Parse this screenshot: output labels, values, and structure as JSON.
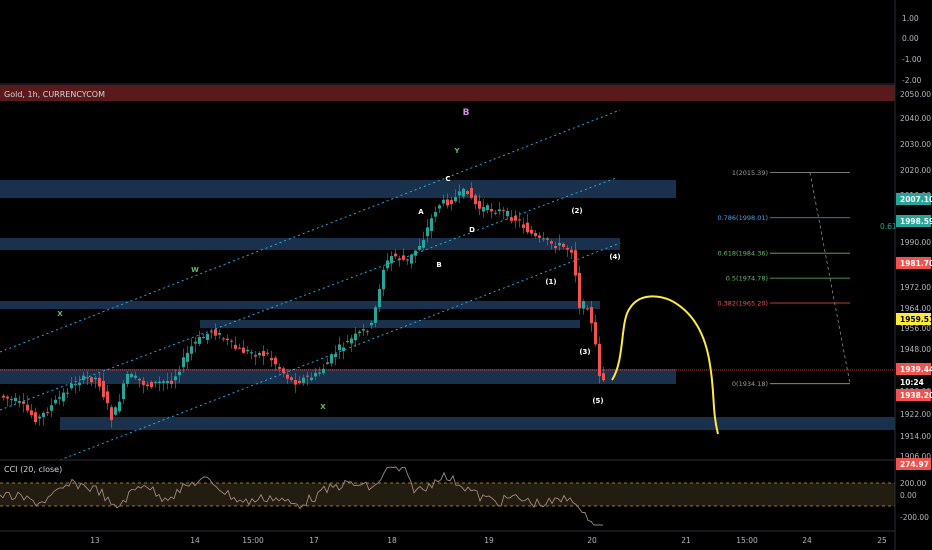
{
  "colors": {
    "background": "#000000",
    "up": "#26a69a",
    "down": "#ef5350",
    "zone_fill": "#1e3a5a",
    "resistance_band": "#6b1f1f",
    "channel": "#29b6f6",
    "wave_green": "#66bb6a",
    "projection": "#ffeb3b",
    "cci_line": "#a1887f",
    "cci_band": "#3a2e1a",
    "price_line": "#ef5350"
  },
  "symbol_label": "Gold, 1h, CURRENCYCOM",
  "indicator_label": "CCI (20, close)",
  "cci_value": "274.97",
  "top_scale_labels": [
    "1.00",
    "0.00",
    "-1.00",
    "-2.00"
  ],
  "price_scale_labels": [
    "2050.00",
    "2040.00",
    "2030.00",
    "2020.00",
    "2010.00",
    "2002.00",
    "1990.00",
    "1981.70",
    "1972.00",
    "1964.00",
    "1956.00",
    "1948.00",
    "1939.44",
    "1930.00",
    "1922.00",
    "1914.00",
    "1906.00"
  ],
  "price_badges": [
    {
      "text": "2007.10",
      "bg": "#26a69a",
      "fg": "#ffffff"
    },
    {
      "text": "1998.59",
      "bg": "#26a69a",
      "fg": "#ffffff"
    },
    {
      "text": "1981.70",
      "bg": "#ef5350",
      "fg": "#ffffff"
    },
    {
      "text": "1959.51",
      "bg": "#ffeb3b",
      "fg": "#000000"
    },
    {
      "text": "1939.44",
      "bg": "#ef5350",
      "fg": "#ffffff"
    },
    {
      "text": "10:24",
      "bg": "#000000",
      "fg": "#ffffff"
    },
    {
      "text": "1938.20",
      "bg": "#ef5350",
      "fg": "#ffffff"
    }
  ],
  "cci_scale_labels": [
    "200.00",
    "0.00",
    "-200.00"
  ],
  "time_labels": [
    "13",
    "14",
    "15:00",
    "17",
    "18",
    "19",
    "20",
    "21",
    "15:00",
    "24",
    "25"
  ],
  "fib_levels": [
    {
      "label": "1(2015.39)",
      "color": "#9e9e9e",
      "value": 2015.39
    },
    {
      "label": "0.786(1998.01)",
      "color": "#42a5f5",
      "value": 1998.01
    },
    {
      "label": "0.618(1984.36)",
      "color": "#66bb6a",
      "value": 1984.36
    },
    {
      "label": "0.5(1974.78)",
      "color": "#66bb6a",
      "value": 1974.78
    },
    {
      "label": "0.382(1965.20)",
      "color": "#ef5350",
      "value": 1965.2
    },
    {
      "label": "0(1934.18)",
      "color": "#9e9e9e",
      "value": 1934.18
    }
  ],
  "fib_side_text": "0.61",
  "wave_labels": [
    {
      "text": "B",
      "color": "#ce93d8"
    },
    {
      "text": "Y",
      "color": "#66bb6a"
    },
    {
      "text": "W",
      "color": "#66bb6a"
    },
    {
      "text": "X",
      "color": "#66bb6a"
    },
    {
      "text": "X",
      "color": "#66bb6a"
    },
    {
      "text": "A",
      "color": "#ffffff"
    },
    {
      "text": "B",
      "color": "#ffffff"
    },
    {
      "text": "C",
      "color": "#ffffff"
    },
    {
      "text": "D",
      "color": "#ffffff"
    },
    {
      "text": "(1)",
      "color": "#ffffff"
    },
    {
      "text": "(2)",
      "color": "#ffffff"
    },
    {
      "text": "(3)",
      "color": "#ffffff"
    },
    {
      "text": "(4)",
      "color": "#ffffff"
    },
    {
      "text": "(5)",
      "color": "#ffffff"
    }
  ]
}
